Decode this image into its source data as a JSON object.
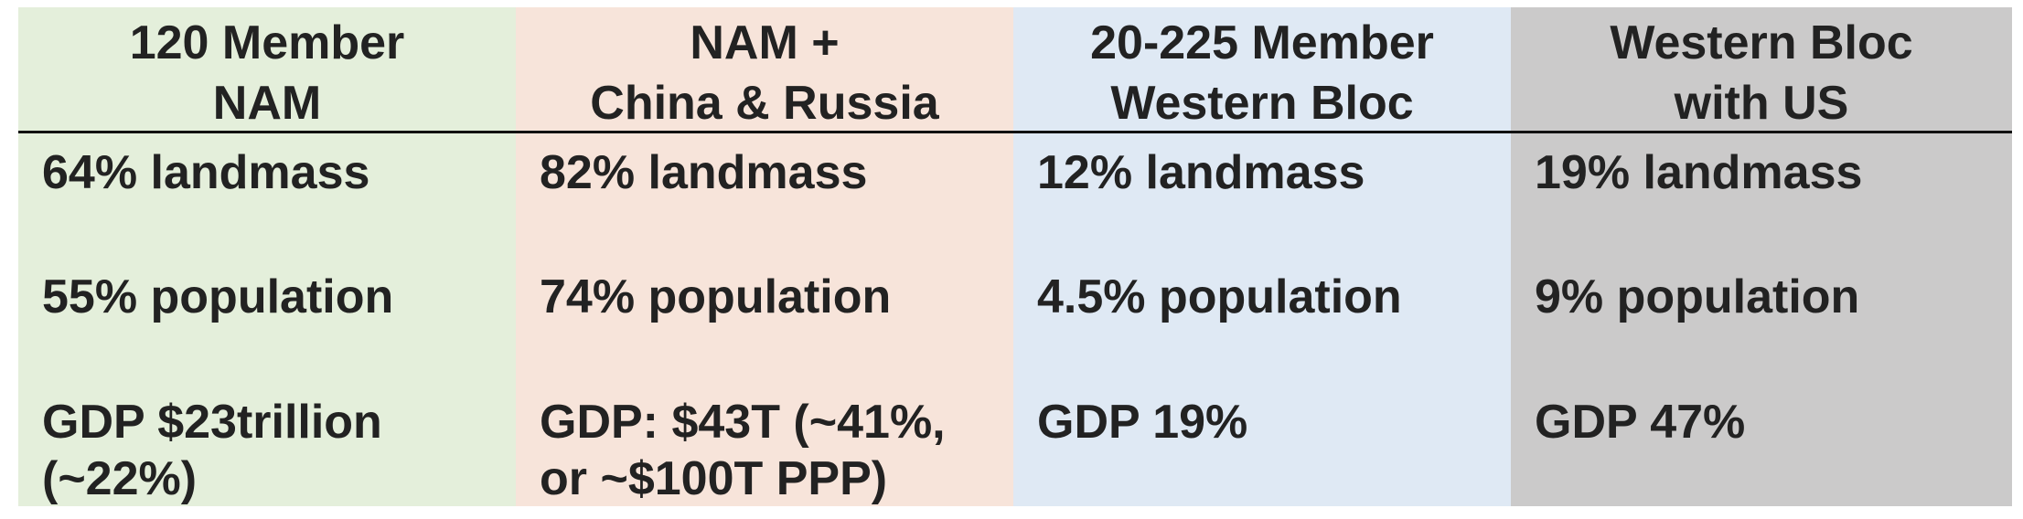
{
  "columns": [
    {
      "header": "120 Member\nNAM",
      "landmass": "64% landmass",
      "population": "55% population",
      "gdp": "GDP $23trillion\n(~22%)",
      "background": "#e4efdb"
    },
    {
      "header": "NAM +\nChina & Russia",
      "landmass": "82% landmass",
      "population": "74% population",
      "gdp": "GDP: $43T (~41%,\nor ~$100T PPP)",
      "background": "#f7e4da"
    },
    {
      "header": "20-225 Member\nWestern Bloc",
      "landmass": "12% landmass",
      "population": "4.5% population",
      "gdp": "GDP 19%",
      "background": "#dfe9f4"
    },
    {
      "header": "Western Bloc\nwith US",
      "landmass": "19% landmass",
      "population": "9% population",
      "gdp": "GDP 47%",
      "background": "#cbcaca"
    }
  ]
}
